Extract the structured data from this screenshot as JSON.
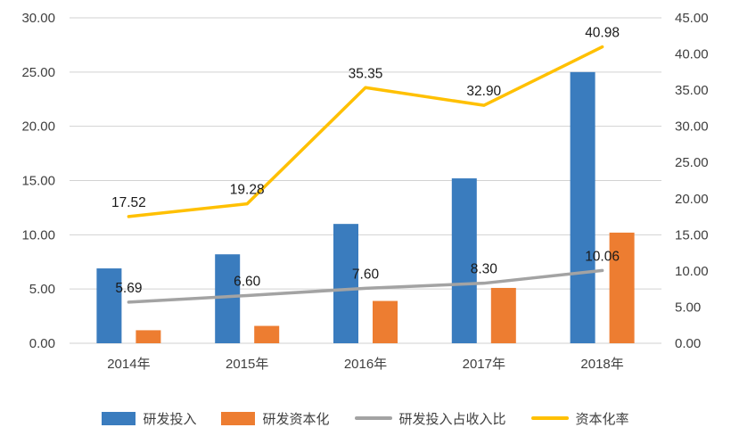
{
  "chart_data": {
    "type": "combo",
    "title": "",
    "categories": [
      "2014年",
      "2015年",
      "2016年",
      "2017年",
      "2018年"
    ],
    "series": [
      {
        "name": "研发投入",
        "type": "bar",
        "axis": "left",
        "color": "#3a7cbe",
        "values": [
          6.9,
          8.2,
          11.0,
          15.2,
          25.0
        ]
      },
      {
        "name": "研发资本化",
        "type": "bar",
        "axis": "left",
        "color": "#ed7d31",
        "values": [
          1.2,
          1.6,
          3.9,
          5.1,
          10.2
        ]
      },
      {
        "name": "研发投入占收入比",
        "type": "line",
        "axis": "right",
        "color": "#a3a3a3",
        "values": [
          5.69,
          6.6,
          7.6,
          8.3,
          10.06
        ],
        "labels": [
          "5.69",
          "6.60",
          "7.60",
          "8.30",
          "10.06"
        ]
      },
      {
        "name": "资本化率",
        "type": "line",
        "axis": "right",
        "color": "#ffc000",
        "values": [
          17.52,
          19.28,
          35.35,
          32.9,
          40.98
        ],
        "labels": [
          "17.52",
          "19.28",
          "35.35",
          "32.90",
          "40.98"
        ]
      }
    ],
    "left_axis": {
      "min": 0,
      "max": 30,
      "step": 5,
      "tick_labels": [
        "0.00",
        "5.00",
        "10.00",
        "15.00",
        "20.00",
        "25.00",
        "30.00"
      ]
    },
    "right_axis": {
      "min": 0,
      "max": 45,
      "step": 5,
      "tick_labels": [
        "0.00",
        "5.00",
        "10.00",
        "15.00",
        "20.00",
        "25.00",
        "30.00",
        "35.00",
        "40.00",
        "45.00"
      ]
    },
    "grid": true,
    "gridline_color": "#d2d2d2",
    "legend_position": "bottom"
  }
}
